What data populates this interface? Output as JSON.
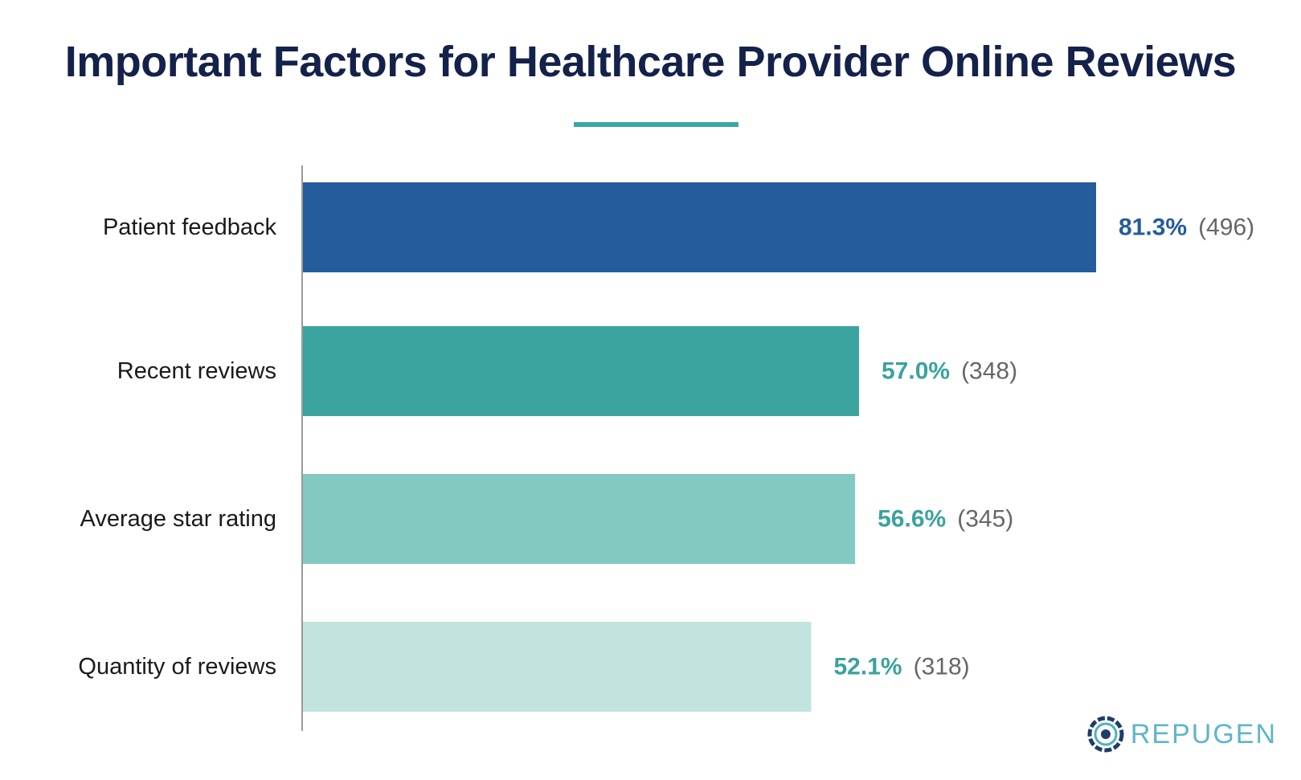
{
  "chart_data": {
    "type": "bar",
    "orientation": "horizontal",
    "title": "Important Factors for Healthcare Provider Online Reviews",
    "categories": [
      "Patient feedback",
      "Recent reviews",
      "Average star rating",
      "Quantity of reviews"
    ],
    "values": [
      81.3,
      57.0,
      56.6,
      52.1
    ],
    "value_labels": [
      "81.3%",
      "57.0%",
      "56.6%",
      "52.1%"
    ],
    "counts": [
      496,
      348,
      345,
      318
    ],
    "count_labels": [
      "(496)",
      "(348)",
      "(345)",
      "(318)"
    ],
    "bar_colors": [
      "#245c9c",
      "#3ca49f",
      "#83c9c2",
      "#c2e4de"
    ],
    "value_label_colors": [
      "#245c9c",
      "#3aa39d",
      "#3aa39d",
      "#3aa39d"
    ],
    "xlim": [
      0,
      81.3
    ],
    "grid": false,
    "legend": "none"
  },
  "branding": {
    "logo_text": "REPUGEN",
    "logo_color": "#5fb6c8"
  },
  "colors": {
    "title": "#14214a",
    "accent_underline": "#3aa7a7",
    "axis": "#9a9a9a"
  }
}
